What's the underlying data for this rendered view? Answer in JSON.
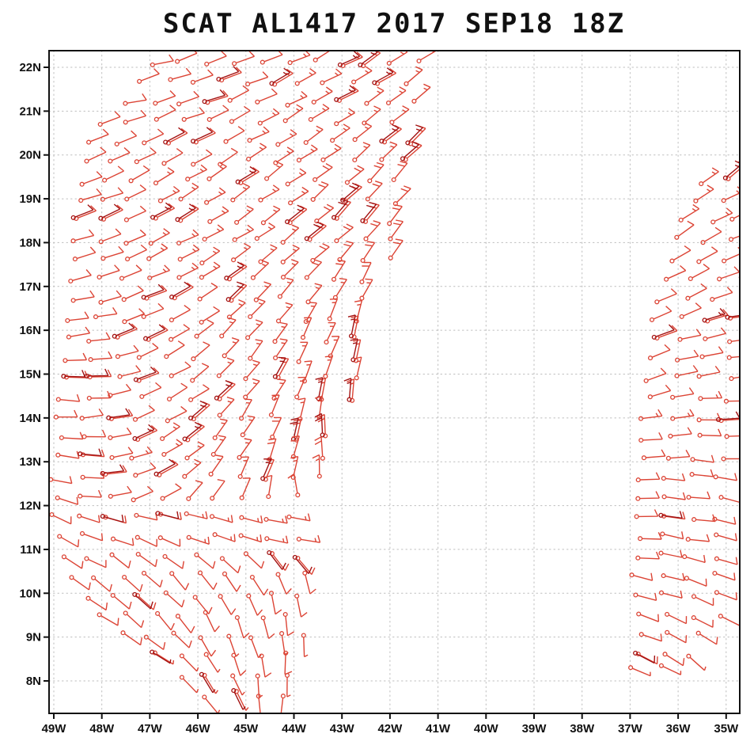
{
  "title": "SCAT AL1417 2017 SEP18 18Z",
  "chart_data": {
    "type": "scatter",
    "subtype": "wind-barb-vector-plot",
    "title": "SCAT AL1417 2017 SEP18 18Z",
    "source_label": "SCAT",
    "storm_id": "AL1417",
    "valid_time": "2017 SEP18 18Z",
    "wind_units": "kt",
    "grid_style": "dotted",
    "barb_color": "#dc4435",
    "barb_color_dark": "#a31212",
    "x_axis": {
      "tick_labels": [
        "49W",
        "48W",
        "47W",
        "46W",
        "45W",
        "44W",
        "43W",
        "42W",
        "41W",
        "40W",
        "39W",
        "38W",
        "37W",
        "36W",
        "35W"
      ],
      "tick_lons": [
        49,
        48,
        47,
        46,
        45,
        44,
        43,
        42,
        41,
        40,
        39,
        38,
        37,
        36,
        35
      ],
      "range_lon": [
        49.1,
        34.7
      ]
    },
    "y_axis": {
      "tick_labels": [
        "22N",
        "21N",
        "20N",
        "19N",
        "18N",
        "17N",
        "16N",
        "15N",
        "14N",
        "13N",
        "12N",
        "11N",
        "10N",
        "9N",
        "8N"
      ],
      "tick_lats": [
        22,
        21,
        20,
        19,
        18,
        17,
        16,
        15,
        14,
        13,
        12,
        11,
        10,
        9,
        8
      ],
      "range_lat": [
        7.3,
        22.4
      ]
    },
    "lon_step": 0.55,
    "barb_rows_columns": [
      "lat",
      "lon_west",
      "count",
      "dir_from_west_deg",
      "dir_from_east_deg",
      "spd_west_kt",
      "spd_east_kt"
    ],
    "left_swath": [
      [
        22.1,
        46.9,
        11,
        75,
        55,
        10,
        15
      ],
      [
        21.65,
        47.2,
        11,
        75,
        55,
        10,
        15
      ],
      [
        21.2,
        47.5,
        12,
        75,
        55,
        10,
        15
      ],
      [
        20.75,
        48.0,
        12,
        72,
        52,
        10,
        15
      ],
      [
        20.3,
        48.2,
        13,
        72,
        50,
        10,
        15
      ],
      [
        19.85,
        48.3,
        13,
        70,
        48,
        10,
        15
      ],
      [
        19.4,
        48.45,
        13,
        70,
        45,
        10,
        20
      ],
      [
        18.95,
        48.5,
        13,
        70,
        45,
        10,
        20
      ],
      [
        18.5,
        48.55,
        13,
        72,
        42,
        10,
        20
      ],
      [
        18.05,
        48.6,
        13,
        74,
        40,
        10,
        20
      ],
      [
        17.6,
        48.6,
        13,
        76,
        35,
        10,
        20
      ],
      [
        17.15,
        48.65,
        12,
        78,
        30,
        10,
        20
      ],
      [
        16.7,
        48.65,
        12,
        80,
        25,
        10,
        15
      ],
      [
        16.25,
        48.7,
        12,
        82,
        20,
        10,
        15
      ],
      [
        15.8,
        48.75,
        12,
        85,
        15,
        10,
        15
      ],
      [
        15.35,
        48.8,
        12,
        88,
        12,
        10,
        15
      ],
      [
        14.9,
        48.8,
        12,
        90,
        10,
        10,
        15
      ],
      [
        14.45,
        48.85,
        12,
        92,
        8,
        10,
        15
      ],
      [
        14.0,
        48.9,
        11,
        95,
        5,
        10,
        15
      ],
      [
        13.55,
        48.9,
        11,
        98,
        3,
        10,
        20
      ],
      [
        13.1,
        48.95,
        11,
        100,
        0,
        10,
        20
      ],
      [
        12.65,
        49.0,
        11,
        103,
        -3,
        10,
        15
      ],
      [
        12.2,
        48.95,
        10,
        106,
        -5,
        10,
        10
      ],
      [
        11.75,
        49.0,
        10,
        112,
        100,
        10,
        15
      ],
      [
        11.3,
        48.9,
        10,
        115,
        105,
        10,
        15
      ],
      [
        10.85,
        48.85,
        10,
        118,
        140,
        10,
        10
      ],
      [
        10.4,
        48.7,
        10,
        120,
        160,
        10,
        10
      ],
      [
        9.95,
        48.3,
        9,
        118,
        170,
        10,
        10
      ],
      [
        9.5,
        48.0,
        8,
        120,
        175,
        10,
        10
      ],
      [
        9.05,
        47.6,
        8,
        122,
        180,
        10,
        5
      ],
      [
        8.6,
        46.9,
        6,
        125,
        180,
        5,
        10
      ],
      [
        8.15,
        46.4,
        5,
        130,
        185,
        5,
        5
      ],
      [
        7.7,
        45.8,
        4,
        140,
        190,
        5,
        5
      ]
    ],
    "right_swath": [
      [
        19.4,
        35.45,
        2,
        55,
        55,
        15,
        15
      ],
      [
        18.95,
        35.6,
        2,
        55,
        60,
        15,
        15
      ],
      [
        18.5,
        35.9,
        3,
        58,
        62,
        15,
        10
      ],
      [
        18.05,
        36.0,
        3,
        60,
        65,
        10,
        10
      ],
      [
        17.6,
        36.15,
        3,
        62,
        68,
        10,
        10
      ],
      [
        17.15,
        36.3,
        4,
        64,
        70,
        10,
        10
      ],
      [
        16.7,
        36.4,
        4,
        65,
        75,
        10,
        10
      ],
      [
        16.25,
        36.5,
        4,
        68,
        78,
        10,
        15
      ],
      [
        15.8,
        36.5,
        4,
        70,
        80,
        10,
        10
      ],
      [
        15.35,
        36.6,
        4,
        72,
        82,
        10,
        10
      ],
      [
        14.9,
        36.6,
        4,
        75,
        85,
        10,
        10
      ],
      [
        14.45,
        36.65,
        4,
        78,
        88,
        10,
        15
      ],
      [
        14.0,
        36.7,
        4,
        80,
        90,
        15,
        10
      ],
      [
        13.55,
        36.7,
        4,
        82,
        92,
        10,
        10
      ],
      [
        13.1,
        36.75,
        4,
        85,
        95,
        10,
        10
      ],
      [
        12.65,
        36.8,
        4,
        88,
        98,
        10,
        10
      ],
      [
        12.2,
        36.8,
        4,
        90,
        100,
        10,
        10
      ],
      [
        11.75,
        36.85,
        4,
        92,
        102,
        10,
        10
      ],
      [
        11.3,
        36.85,
        4,
        95,
        105,
        10,
        10
      ],
      [
        10.85,
        36.9,
        4,
        98,
        108,
        10,
        10
      ],
      [
        10.4,
        36.9,
        4,
        100,
        112,
        10,
        10
      ],
      [
        9.95,
        36.85,
        4,
        103,
        115,
        10,
        10
      ],
      [
        9.5,
        36.8,
        4,
        106,
        120,
        10,
        10
      ],
      [
        9.05,
        36.75,
        3,
        110,
        125,
        10,
        10
      ],
      [
        8.6,
        36.9,
        3,
        112,
        130,
        10,
        5
      ],
      [
        8.3,
        36.95,
        2,
        115,
        115,
        5,
        5
      ]
    ]
  }
}
